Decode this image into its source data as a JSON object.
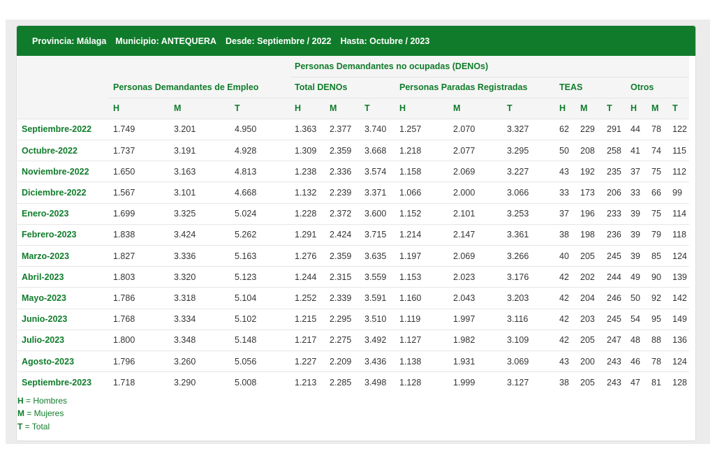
{
  "banner": {
    "provincia": "Provincia: Málaga",
    "municipio": "Municipio: ANTEQUERA",
    "desde": "Desde: Septiembre / 2022",
    "hasta": "Hasta: Octubre / 2023"
  },
  "headers": {
    "denos_group": "Personas Demandantes no ocupadas (DENOs)",
    "demandantes": "Personas Demandantes de Empleo",
    "total_denos": "Total DENOs",
    "paradas": "Personas Paradas Registradas",
    "teas": "TEAS",
    "otros": "Otros",
    "sub": [
      "H",
      "M",
      "T",
      "H",
      "M",
      "T",
      "H",
      "M",
      "T",
      "H",
      "M",
      "T",
      "H",
      "M",
      "T"
    ]
  },
  "rows": [
    {
      "period": "Septiembre-2022",
      "values": [
        "1.749",
        "3.201",
        "4.950",
        "1.363",
        "2.377",
        "3.740",
        "1.257",
        "2.070",
        "3.327",
        "62",
        "229",
        "291",
        "44",
        "78",
        "122"
      ]
    },
    {
      "period": "Octubre-2022",
      "values": [
        "1.737",
        "3.191",
        "4.928",
        "1.309",
        "2.359",
        "3.668",
        "1.218",
        "2.077",
        "3.295",
        "50",
        "208",
        "258",
        "41",
        "74",
        "115"
      ]
    },
    {
      "period": "Noviembre-2022",
      "values": [
        "1.650",
        "3.163",
        "4.813",
        "1.238",
        "2.336",
        "3.574",
        "1.158",
        "2.069",
        "3.227",
        "43",
        "192",
        "235",
        "37",
        "75",
        "112"
      ]
    },
    {
      "period": "Diciembre-2022",
      "values": [
        "1.567",
        "3.101",
        "4.668",
        "1.132",
        "2.239",
        "3.371",
        "1.066",
        "2.000",
        "3.066",
        "33",
        "173",
        "206",
        "33",
        "66",
        "99"
      ]
    },
    {
      "period": "Enero-2023",
      "values": [
        "1.699",
        "3.325",
        "5.024",
        "1.228",
        "2.372",
        "3.600",
        "1.152",
        "2.101",
        "3.253",
        "37",
        "196",
        "233",
        "39",
        "75",
        "114"
      ]
    },
    {
      "period": "Febrero-2023",
      "values": [
        "1.838",
        "3.424",
        "5.262",
        "1.291",
        "2.424",
        "3.715",
        "1.214",
        "2.147",
        "3.361",
        "38",
        "198",
        "236",
        "39",
        "79",
        "118"
      ]
    },
    {
      "period": "Marzo-2023",
      "values": [
        "1.827",
        "3.336",
        "5.163",
        "1.276",
        "2.359",
        "3.635",
        "1.197",
        "2.069",
        "3.266",
        "40",
        "205",
        "245",
        "39",
        "85",
        "124"
      ]
    },
    {
      "period": "Abril-2023",
      "values": [
        "1.803",
        "3.320",
        "5.123",
        "1.244",
        "2.315",
        "3.559",
        "1.153",
        "2.023",
        "3.176",
        "42",
        "202",
        "244",
        "49",
        "90",
        "139"
      ]
    },
    {
      "period": "Mayo-2023",
      "values": [
        "1.786",
        "3.318",
        "5.104",
        "1.252",
        "2.339",
        "3.591",
        "1.160",
        "2.043",
        "3.203",
        "42",
        "204",
        "246",
        "50",
        "92",
        "142"
      ]
    },
    {
      "period": "Junio-2023",
      "values": [
        "1.768",
        "3.334",
        "5.102",
        "1.215",
        "2.295",
        "3.510",
        "1.119",
        "1.997",
        "3.116",
        "42",
        "203",
        "245",
        "54",
        "95",
        "149"
      ]
    },
    {
      "period": "Julio-2023",
      "values": [
        "1.800",
        "3.348",
        "5.148",
        "1.217",
        "2.275",
        "3.492",
        "1.127",
        "1.982",
        "3.109",
        "42",
        "205",
        "247",
        "48",
        "88",
        "136"
      ]
    },
    {
      "period": "Agosto-2023",
      "values": [
        "1.796",
        "3.260",
        "5.056",
        "1.227",
        "2.209",
        "3.436",
        "1.138",
        "1.931",
        "3.069",
        "43",
        "200",
        "243",
        "46",
        "78",
        "124"
      ]
    },
    {
      "period": "Septiembre-2023",
      "values": [
        "1.718",
        "3.290",
        "5.008",
        "1.213",
        "2.285",
        "3.498",
        "1.128",
        "1.999",
        "3.127",
        "38",
        "205",
        "243",
        "47",
        "81",
        "128"
      ]
    }
  ],
  "legend": [
    {
      "key": "H",
      "text": " = Hombres"
    },
    {
      "key": "M",
      "text": " = Mujeres"
    },
    {
      "key": "T",
      "text": " = Total"
    }
  ],
  "colors": {
    "accent": "#107c2b",
    "header_bg": "#f5f5f5"
  }
}
